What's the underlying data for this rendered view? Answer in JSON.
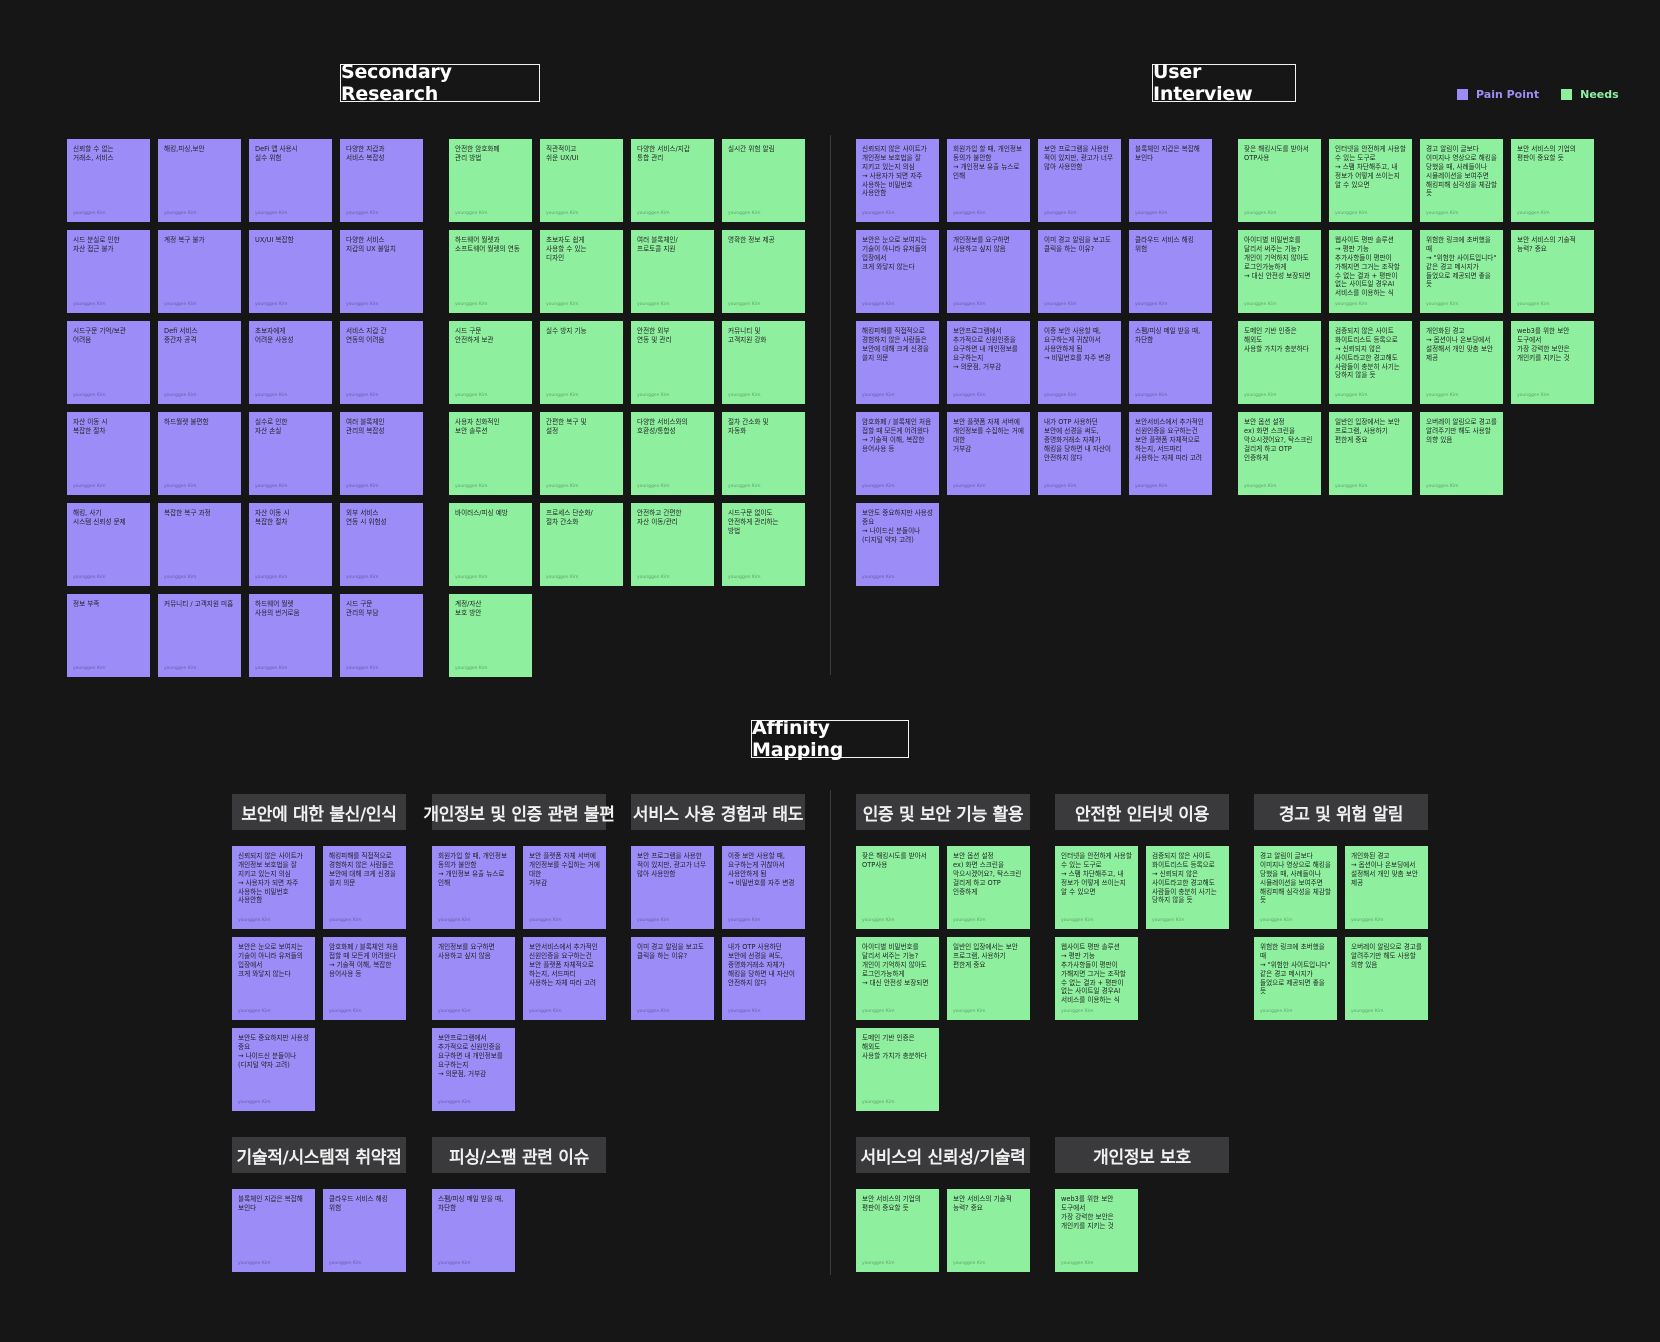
{
  "titles": {
    "secondary": "Secondary Research",
    "interview": "User Interview",
    "affinity": "Affinity Mapping"
  },
  "legend": {
    "pain": "Pain Point",
    "needs": "Needs",
    "pain_color": "#9b8cf8",
    "needs_color": "#8ef09f"
  },
  "signature": "younggen Kim",
  "secondary_pain": [
    "신뢰할 수 없는\n거래소, 서비스",
    "해킹,피싱,보안",
    "DeFi 앱 사용시\n실수 위험",
    "다양한 지갑과\n서비스 복잡성",
    "시드 분실로 인한\n자산 접근 불가",
    "계정 복구 불가",
    "UX/UI 복잡함",
    "다양한 서비스\n지갑의 UX 불일치",
    "시드구문 기억/보관\n어려움",
    "Defi 서비스\n중간자 공격",
    "초보자에게\n어려운 사용성",
    "서비스 지갑 간\n연동의 어려움",
    "자산 이동 시\n복잡한 절차",
    "하드월렛 불편함",
    "실수로 인한\n자산 손실",
    "여러 블록체인\n관리의 복잡성",
    "해킹, 사기\n시스템 신뢰성 문제",
    "복잡한 복구 과정",
    "자산 이동 시\n복잡한 절차",
    "외부 서비스\n연동 시 위험성",
    "정보 부족",
    "커뮤니티 / 고객지원 미흡",
    "하드웨어 월렛\n사용의 번거로움",
    "시드 구문\n관리의 부담"
  ],
  "secondary_needs": [
    "안전한 암호화폐\n관리 방법",
    "직관적이고\n쉬운 UX/UI",
    "다양한 서비스/지갑\n통합 관리",
    "실시간 위험 알림",
    "하드웨어 월렛과\n소프트웨어 월렛의 연동",
    "초보자도 쉽게\n사용할 수 있는\n디자인",
    "여러 블록체인/\n프로토콜 지원",
    "명확한 정보 제공",
    "시드 구문\n안전하게 보관",
    "실수 방지 기능",
    "안전한 외부\n연동 및 관리",
    "커뮤니티 및\n고객지원 강화",
    "사용자 친화적인\n보안 솔루션",
    "간편한 복구 및\n설정",
    "다양한 서비스와의\n호환성/통합성",
    "절차 간소화 및\n자동화",
    "바이러스/피싱 예방",
    "프로세스 단순화/\n절차 간소화",
    "안전하고 간편한\n자산 이동/관리",
    "시드구문 없이도\n안전하게 관리하는\n방법",
    "계정/자산\n보호 방안"
  ],
  "interview_pain": [
    "신뢰되지 않은 사이트가\n개인정보 보호법을 잘 지키고 있는지 의심\n→ 사용자가 되면 자주 사용하는 비밀번호 사용안함",
    "회원가입 할 때, 개인정보 동의가 불안함\n→ 개인정보 유출 뉴스로 인해",
    "보안 프로그램을 사용한 적이 있지만, 광고가 너무 많아 사용안함",
    "블록체인 지갑은 복잡해 보인다",
    "보안은 눈으로 보여지는 기술이 아니라 유저들의 입장에서\n크게 와닿지 않는다",
    "개인정보를 요구하면 사용하고 싶지 않음",
    "이미 경고 알림을 보고도 클릭을 하는 이유?",
    "클라우드 서비스 해킹 위험",
    "해킹피해를 직접적으로 경험하지 않은 사람들은 보안에 대해 크게 신경을 쓸지 의문",
    "보안프로그램에서 추가적으로 신원인증을 요구하면 내 개인정보를 요구하는지\n→ 의문점, 거부감",
    "이중 보안 사용할 때, 요구하는게 귀찮아서 사용안하게 됨\n→ 비밀번호를 자주 변경",
    "스팸/피싱 메일 받을 때, 차단함",
    "암호화폐 / 블록체인 처음 접할 때 모든게 어려웠다\n→ 기술적 이해, 복잡한 용어사용 등",
    "보안 플랫폼 자체 서버에 개인정보를 수집하는 거에 대한\n거부감",
    "내가 OTP 사용하던 보안에 선경을 써도, 증명화거래소 자체가 해킹을 당하면 내 자산이 안전하지 않다",
    "보안서비스에서 추가적인 신원인증을 요구하는건 보안 플랫폼 자체적으로 하는지, 서드파티 사용하는 자체 따라 고려",
    "보안도 중요하지만 사용성 중요\n→ 나이드신 분들이나(디지털 약자 고려)"
  ],
  "interview_needs": [
    "잦은 해킹시도를 받아서\nOTP사용",
    "인터넷을 안전하게 사용할 수 있는 도구로\n→ 스팸 차단해주고, 내 정보가 어떻게 쓰이는지 알 수 있으면",
    "경고 알림이 글보다 이미지나 영상으로 해킹을 당했을 때, 사례들이나 시뮬레이션을 보여주면 해킹피해 심각성을 체감할 듯",
    "보안 서비스의 기업의 평판이 중요할 듯",
    "아이디별 비밀번호를 달리서 써주는 기능?\n개인이 기억하지 않아도 로그인가능하게\n→ 대신 안전성 보장되면",
    "웹사이트 평판 솔루션\n→ 평판 기능 추가사항들이 평판이 가해지면 그거는 조작할 수 없는 결과 + 평판이 없는 사이트일 경우AI 서비스를 이용하는 식",
    "위험한 링크에 초버했을 때\n→ \"위험한 사이트입니다\" 같은 경고 메시지가 들었으로 제공되면 좋을 듯",
    "보안 서비스의 기술적 능력? 중요",
    "도메인 기반 인증은 해외도\n사용할 가치가 충분하다",
    "검증되지 않은 사이트 화이트리스트 등록으로\n→ 신뢰되지 않은 사이트라고한 경고해도 사람들이 충분히 사기는 당하지 않을 듯",
    "개인화된 경고\n→ 옵션이나 온보딩에서 설정해서 개인 맞춤 보안 제공",
    "web3를 위한 보안 도구에서\n가장 강력한 보안은 개인키를 지키는 것",
    "보안 옵션 설정\nex) 화면 스크린을 막으시겠어요?, 탁스크린 걸리게 하고 OTP 인증하게",
    "일반인 입장에서는 보안 프로그램, 사용하기 편한게 중요",
    "오버레이 알림으로 경고를 알려주기만 해도 사용할 의향 있음"
  ],
  "affinity": {
    "groups": [
      {
        "header": "보안에 대한 불신/인식",
        "type": "pain",
        "notes": [
          "신뢰되지 않은 사이트가\n개인정보 보호법을 잘 지키고 있는지 의심\n→ 사용자가 되면 자주 사용하는 비밀번호 사용안함",
          "해킹피해를 직접적으로 경험하지 않은 사람들은 보안에 대해 크게 신경을 쓸지 의문",
          "보안은 눈으로 보여지는 기술이 아니라 유저들의 입장에서\n크게 와닿지 않는다",
          "암호화폐 / 블록체인 처음 접할 때 모든게 어려웠다\n→ 기술적 이해, 복잡한 용어사용 등",
          "보안도 중요하지만 사용성 중요\n→ 나이드신 분들이나(디지털 약자 고려)"
        ]
      },
      {
        "header": "개인정보 및 인증 관련 불편",
        "type": "pain",
        "notes": [
          "회원가입 할 때, 개인정보 동의가 불안함\n→ 개인정보 유출 뉴스로 인해",
          "보안 플랫폼 자체 서버에 개인정보를 수집하는 거에 대한\n거부감",
          "개인정보를 요구하면 사용하고 싶지 않음",
          "보안서비스에서 추가적인 신원인증을 요구하는건 보안 플랫폼 자체적으로 하는지, 서드파티 사용하는 자체 따라 고려",
          "보안프로그램에서 추가적으로 신원인증을 요구하면 내 개인정보를 요구하는지\n→ 의문점, 거부감"
        ]
      },
      {
        "header": "서비스 사용 경험과 태도",
        "type": "pain",
        "notes": [
          "보안 프로그램을 사용한 적이 있지만, 광고가 너무 많아 사용안함",
          "이중 보안 사용할 때, 요구하는게 귀찮아서 사용안하게 됨\n→ 비밀번호를 자주 변경",
          "이미 경고 알림을 보고도 클릭을 하는 이유?",
          "내가 OTP 사용하던 보안에 선경을 써도, 증명화거래소 자체가 해킹을 당하면 내 자산이 안전하지 않다"
        ]
      },
      {
        "header": "인증 및 보안 기능 활용",
        "type": "needs",
        "notes": [
          "잦은 해킹시도를 받아서\nOTP사용",
          "보안 옵션 설정\nex) 화면 스크린을 막으시겠어요?, 탁스크린 걸리게 하고 OTP 인증하게",
          "아이디별 비밀번호를 달리서 써주는 기능?\n개인이 기억하지 않아도 로그인가능하게\n→ 대신 안전성 보장되면",
          "일반인 입장에서는 보안 프로그램, 사용하기 편한게 중요",
          "도메인 기반 인증은 해외도\n사용할 가치가 충분하다"
        ]
      },
      {
        "header": "안전한 인터넷 이용",
        "type": "needs",
        "notes": [
          "인터넷을 안전하게 사용할 수 있는 도구로\n→ 스팸 차단해주고, 내 정보가 어떻게 쓰이는지 알 수 있으면",
          "검증되지 않은 사이트 화이트리스트 등록으로\n→ 신뢰되지 않은 사이트라고한 경고해도 사람들이 충분히 사기는 당하지 않을 듯",
          "웹사이트 평판 솔루션\n→ 평판 기능 추가사항들이 평판이 가해지면 그거는 조작할 수 없는 결과 + 평판이 없는 사이트일 경우AI 서비스를 이용하는 식"
        ]
      },
      {
        "header": "경고 및 위험 알림",
        "type": "needs",
        "notes": [
          "경고 알림이 글보다 이미지나 영상으로 해킹을 당했을 때, 사례들이나 시뮬레이션을 보여주면 해킹피해 심각성을 체감할 듯",
          "개인화된 경고\n→ 옵션이나 온보딩에서 설정해서 개인 맞춤 보안 제공",
          "위험한 링크에 초버했을 때\n→ \"위험한 사이트입니다\" 같은 경고 메시지가 들었으로 제공되면 좋을 듯",
          "오버레이 알림으로 경고를 알려주기만 해도 사용할 의향 있음"
        ]
      },
      {
        "header": "기술적/시스템적 취약점",
        "type": "pain",
        "notes": [
          "블록체인 지갑은 복잡해 보인다",
          "클라우드 서비스 해킹 위험"
        ]
      },
      {
        "header": "피싱/스팸 관련 이슈",
        "type": "pain",
        "notes": [
          "스팸/피싱 메일 받을 때, 차단함"
        ]
      },
      {
        "header": "서비스의 신뢰성/기술력",
        "type": "needs",
        "notes": [
          "보안 서비스의 기업의 평판이 중요할 듯",
          "보안 서비스의 기술적 능력? 중요"
        ]
      },
      {
        "header": "개인정보 보호",
        "type": "needs",
        "notes": [
          "web3를 위한 보안 도구에서\n가장 강력한 보안은 개인키를 지키는 것"
        ]
      }
    ]
  }
}
